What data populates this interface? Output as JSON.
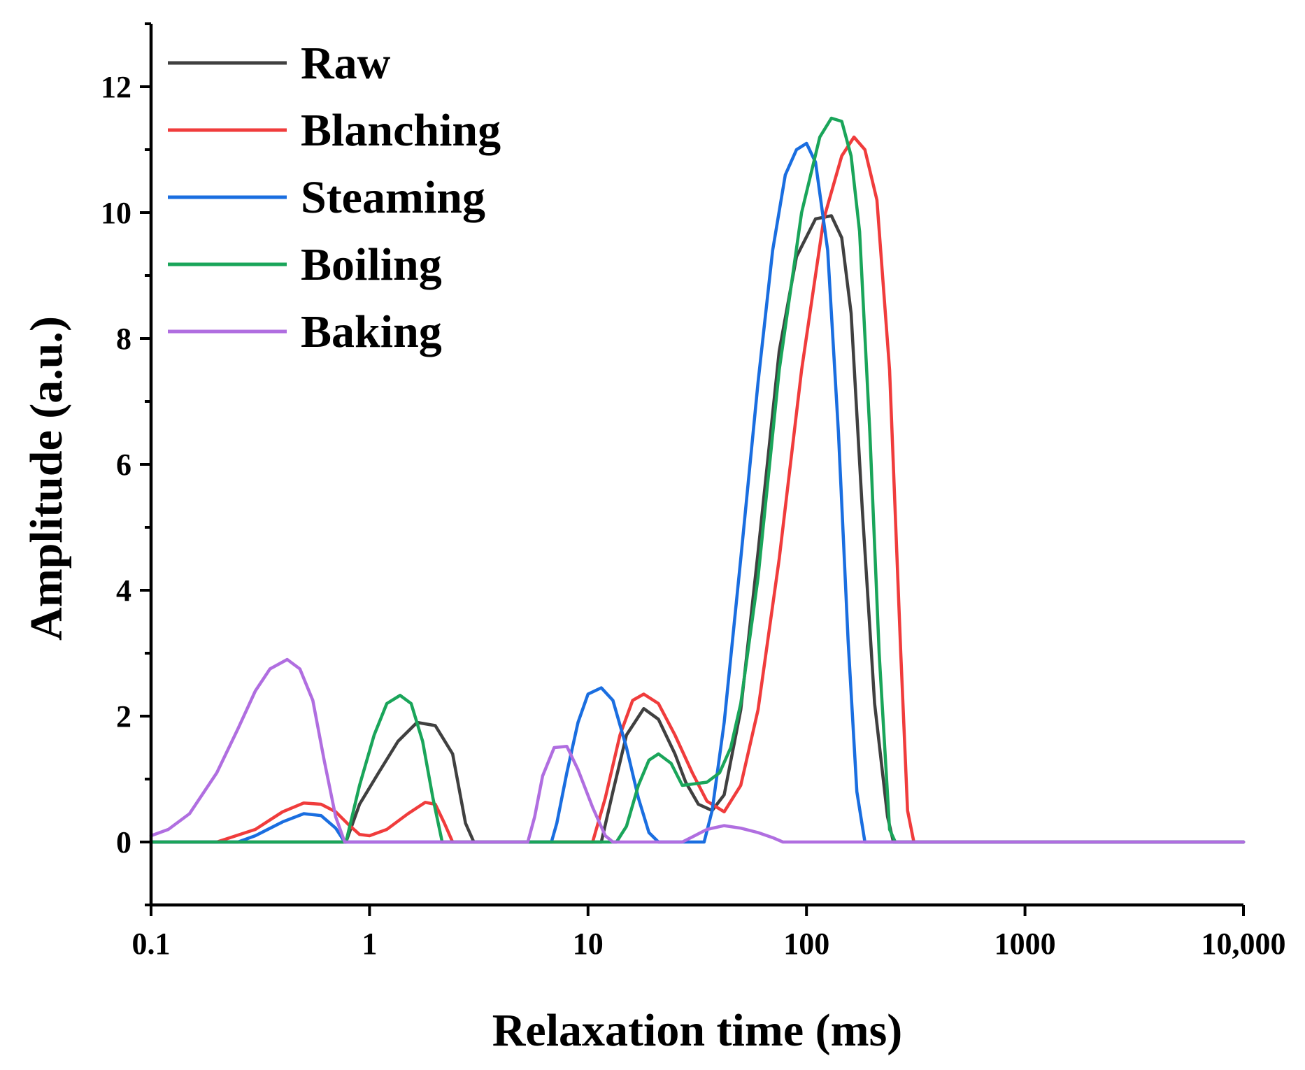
{
  "chart_data": {
    "type": "line",
    "title": "",
    "xlabel": "Relaxation time (ms)",
    "ylabel": "Amplitude (a.u.)",
    "xscale": "log",
    "xlim": [
      0.1,
      10000
    ],
    "ylim": [
      -1,
      13
    ],
    "x_ticks": [
      0.1,
      1,
      10,
      100,
      1000,
      10000
    ],
    "x_tick_labels": [
      "0.1",
      "1",
      "10",
      "100",
      "1000",
      "10,000"
    ],
    "y_ticks": [
      0,
      2,
      4,
      6,
      8,
      10,
      12
    ],
    "y_tick_labels": [
      "0",
      "2",
      "4",
      "6",
      "8",
      "10",
      "12"
    ],
    "grid": false,
    "legend_position": "top-left",
    "series": [
      {
        "name": "Raw",
        "color": "#404040",
        "x": [
          0.1,
          0.78,
          0.9,
          1.1,
          1.35,
          1.65,
          2.0,
          2.4,
          2.75,
          3.0,
          11.5,
          13,
          15,
          18,
          21,
          25,
          28,
          32,
          37,
          42,
          50,
          60,
          75,
          90,
          110,
          130,
          145,
          160,
          180,
          205,
          235,
          250,
          10000
        ],
        "y": [
          0,
          0,
          0.6,
          1.1,
          1.6,
          1.9,
          1.85,
          1.4,
          0.3,
          0,
          0,
          0.8,
          1.7,
          2.12,
          1.95,
          1.4,
          0.95,
          0.6,
          0.5,
          0.75,
          2.1,
          4.6,
          7.8,
          9.3,
          9.9,
          9.95,
          9.6,
          8.4,
          5.3,
          2.2,
          0.4,
          0,
          0
        ]
      },
      {
        "name": "Blanching",
        "color": "#f03c3c",
        "x": [
          0.1,
          0.2,
          0.3,
          0.4,
          0.5,
          0.6,
          0.7,
          0.8,
          0.9,
          1.0,
          1.2,
          1.5,
          1.8,
          2.0,
          2.2,
          2.4,
          10.5,
          12,
          14,
          16,
          18,
          21,
          25,
          30,
          35,
          42,
          50,
          60,
          75,
          95,
          120,
          145,
          165,
          185,
          210,
          240,
          270,
          290,
          310,
          10000
        ],
        "y": [
          0,
          0,
          0.2,
          0.48,
          0.62,
          0.6,
          0.48,
          0.28,
          0.12,
          0.1,
          0.2,
          0.45,
          0.63,
          0.6,
          0.3,
          0,
          0,
          0.7,
          1.7,
          2.25,
          2.35,
          2.2,
          1.7,
          1.1,
          0.65,
          0.48,
          0.9,
          2.1,
          4.5,
          7.5,
          9.9,
          10.9,
          11.2,
          11.0,
          10.2,
          7.5,
          3.0,
          0.5,
          0,
          0
        ]
      },
      {
        "name": "Steaming",
        "color": "#1a6ee0",
        "x": [
          0.1,
          0.25,
          0.3,
          0.4,
          0.5,
          0.6,
          0.7,
          0.77,
          6.8,
          7.2,
          8,
          9,
          10,
          11.5,
          13,
          15,
          17,
          19,
          21,
          34,
          37,
          42,
          50,
          60,
          70,
          80,
          90,
          100,
          110,
          125,
          140,
          155,
          170,
          185,
          195,
          10000
        ],
        "y": [
          0,
          0,
          0.1,
          0.32,
          0.45,
          0.42,
          0.22,
          0,
          0,
          0.3,
          1.1,
          1.9,
          2.35,
          2.45,
          2.25,
          1.5,
          0.7,
          0.15,
          0,
          0,
          0.5,
          1.9,
          4.5,
          7.3,
          9.4,
          10.6,
          11.0,
          11.1,
          10.8,
          9.4,
          6.5,
          3.2,
          0.8,
          0,
          0,
          0
        ]
      },
      {
        "name": "Boiling",
        "color": "#1aa55a",
        "x": [
          0.1,
          0.78,
          0.9,
          1.05,
          1.2,
          1.38,
          1.55,
          1.75,
          1.95,
          2.15,
          2.3,
          13.5,
          15,
          17,
          19,
          21,
          24,
          27,
          30,
          35,
          40,
          45,
          50,
          60,
          75,
          95,
          115,
          130,
          145,
          160,
          175,
          195,
          215,
          240,
          255,
          10000
        ],
        "y": [
          0,
          0,
          0.9,
          1.7,
          2.2,
          2.33,
          2.2,
          1.6,
          0.7,
          0,
          0,
          0,
          0.25,
          0.9,
          1.3,
          1.4,
          1.25,
          0.9,
          0.92,
          0.95,
          1.1,
          1.5,
          2.2,
          4.2,
          7.5,
          10.0,
          11.2,
          11.5,
          11.45,
          10.9,
          9.7,
          6.5,
          3.0,
          0.2,
          0,
          0
        ]
      },
      {
        "name": "Baking",
        "color": "#b06ee0",
        "x": [
          0.1,
          0.12,
          0.15,
          0.2,
          0.25,
          0.3,
          0.35,
          0.42,
          0.48,
          0.55,
          0.62,
          0.7,
          0.77,
          5.3,
          5.7,
          6.2,
          7,
          8,
          9,
          10.5,
          12,
          13,
          27,
          30,
          35,
          42,
          50,
          60,
          70,
          78,
          10000
        ],
        "y": [
          0.1,
          0.2,
          0.45,
          1.1,
          1.8,
          2.4,
          2.75,
          2.9,
          2.75,
          2.25,
          1.3,
          0.4,
          0,
          0,
          0.4,
          1.05,
          1.5,
          1.52,
          1.15,
          0.55,
          0.1,
          0,
          0,
          0.08,
          0.2,
          0.26,
          0.22,
          0.15,
          0.07,
          0,
          0
        ]
      }
    ]
  }
}
